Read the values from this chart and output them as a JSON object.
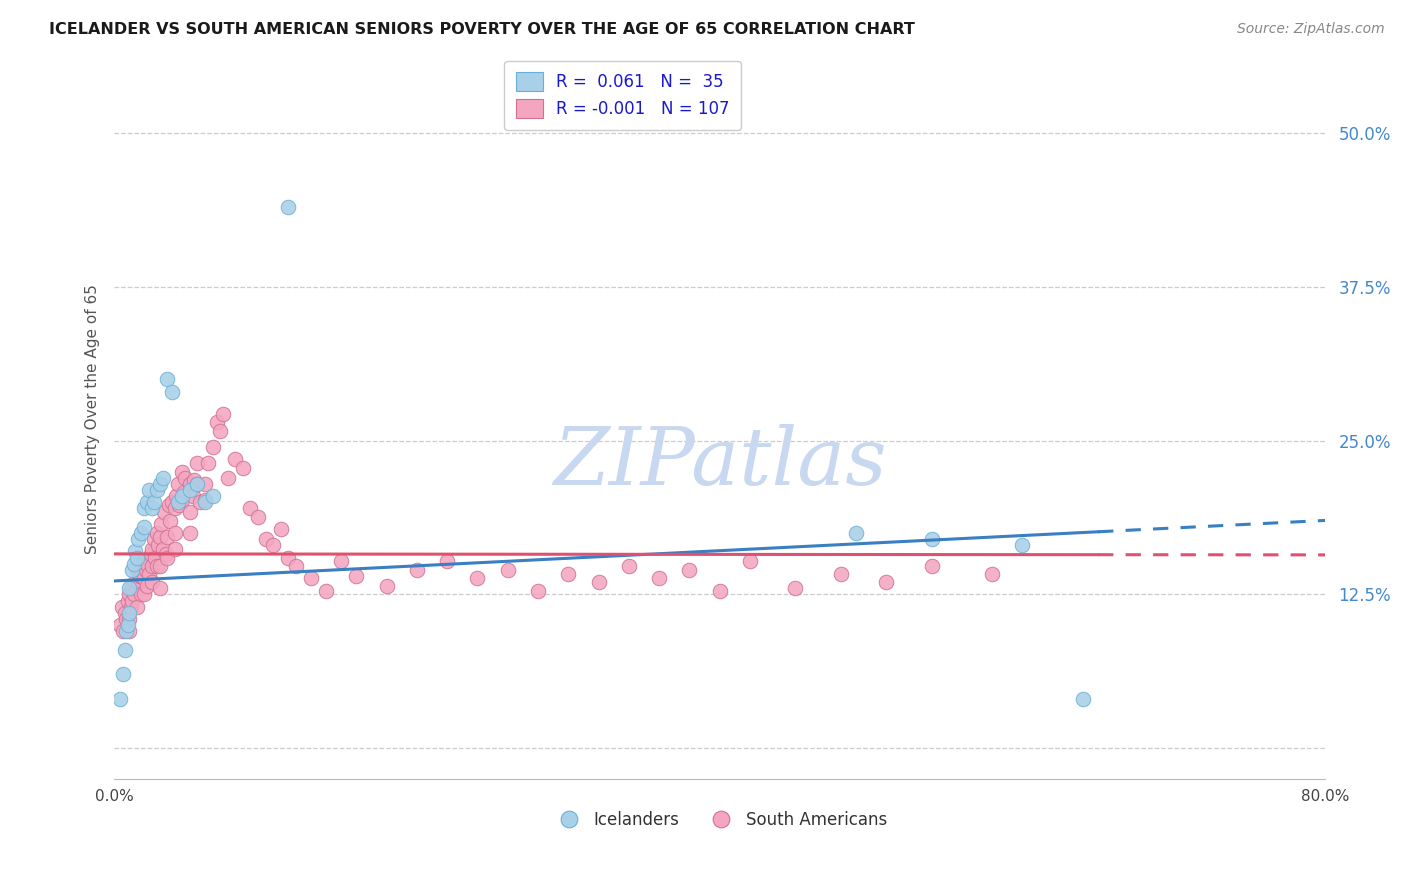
{
  "title": "ICELANDER VS SOUTH AMERICAN SENIORS POVERTY OVER THE AGE OF 65 CORRELATION CHART",
  "source": "Source: ZipAtlas.com",
  "ylabel": "Seniors Poverty Over the Age of 65",
  "ytick_values": [
    0.0,
    0.125,
    0.25,
    0.375,
    0.5
  ],
  "ytick_labels": [
    "",
    "12.5%",
    "25.0%",
    "37.5%",
    "50.0%"
  ],
  "xlim": [
    0.0,
    0.8
  ],
  "ylim": [
    -0.025,
    0.56
  ],
  "icelander_color": "#a8d0e8",
  "icelander_edge": "#6aafd6",
  "south_american_color": "#f4a6c0",
  "south_american_edge": "#d07090",
  "trend_blue_color": "#3a7fc1",
  "trend_pink_color": "#e05070",
  "legend_R_blue": "0.061",
  "legend_N_blue": "35",
  "legend_R_pink": "-0.001",
  "legend_N_pink": "107",
  "background_color": "#ffffff",
  "grid_color": "#cccccc",
  "title_color": "#1a1a1a",
  "source_color": "#888888",
  "ylabel_color": "#555555",
  "ytick_color": "#4488cc",
  "watermark_color": "#c8d8f0",
  "icelanders_x": [
    0.004,
    0.006,
    0.007,
    0.008,
    0.009,
    0.01,
    0.01,
    0.012,
    0.013,
    0.014,
    0.015,
    0.016,
    0.018,
    0.02,
    0.02,
    0.022,
    0.023,
    0.025,
    0.026,
    0.028,
    0.03,
    0.032,
    0.035,
    0.038,
    0.042,
    0.045,
    0.05,
    0.055,
    0.06,
    0.065,
    0.115,
    0.49,
    0.54,
    0.6,
    0.64
  ],
  "icelanders_y": [
    0.04,
    0.06,
    0.08,
    0.095,
    0.1,
    0.11,
    0.13,
    0.145,
    0.15,
    0.16,
    0.155,
    0.17,
    0.175,
    0.18,
    0.195,
    0.2,
    0.21,
    0.195,
    0.2,
    0.21,
    0.215,
    0.22,
    0.3,
    0.29,
    0.2,
    0.205,
    0.21,
    0.215,
    0.2,
    0.205,
    0.44,
    0.175,
    0.17,
    0.165,
    0.04
  ],
  "south_americans_x": [
    0.004,
    0.005,
    0.006,
    0.007,
    0.008,
    0.009,
    0.01,
    0.01,
    0.01,
    0.011,
    0.012,
    0.012,
    0.013,
    0.014,
    0.015,
    0.015,
    0.015,
    0.016,
    0.017,
    0.018,
    0.018,
    0.019,
    0.02,
    0.02,
    0.02,
    0.021,
    0.022,
    0.022,
    0.023,
    0.024,
    0.025,
    0.025,
    0.025,
    0.026,
    0.027,
    0.028,
    0.028,
    0.029,
    0.03,
    0.03,
    0.03,
    0.031,
    0.032,
    0.033,
    0.034,
    0.035,
    0.035,
    0.036,
    0.037,
    0.038,
    0.04,
    0.04,
    0.04,
    0.041,
    0.042,
    0.043,
    0.045,
    0.045,
    0.046,
    0.047,
    0.05,
    0.05,
    0.05,
    0.052,
    0.053,
    0.055,
    0.055,
    0.057,
    0.06,
    0.06,
    0.062,
    0.065,
    0.068,
    0.07,
    0.072,
    0.075,
    0.08,
    0.085,
    0.09,
    0.095,
    0.1,
    0.105,
    0.11,
    0.115,
    0.12,
    0.13,
    0.14,
    0.15,
    0.16,
    0.18,
    0.2,
    0.22,
    0.24,
    0.26,
    0.28,
    0.3,
    0.32,
    0.34,
    0.36,
    0.38,
    0.4,
    0.42,
    0.45,
    0.48,
    0.51,
    0.54,
    0.58
  ],
  "south_americans_y": [
    0.1,
    0.115,
    0.095,
    0.11,
    0.105,
    0.12,
    0.095,
    0.105,
    0.125,
    0.115,
    0.12,
    0.13,
    0.125,
    0.135,
    0.115,
    0.13,
    0.145,
    0.135,
    0.14,
    0.125,
    0.14,
    0.15,
    0.125,
    0.138,
    0.152,
    0.145,
    0.132,
    0.15,
    0.142,
    0.158,
    0.135,
    0.148,
    0.162,
    0.17,
    0.155,
    0.148,
    0.175,
    0.165,
    0.13,
    0.148,
    0.172,
    0.182,
    0.162,
    0.192,
    0.158,
    0.155,
    0.172,
    0.198,
    0.185,
    0.2,
    0.162,
    0.175,
    0.195,
    0.205,
    0.215,
    0.198,
    0.202,
    0.225,
    0.208,
    0.22,
    0.175,
    0.192,
    0.215,
    0.205,
    0.218,
    0.215,
    0.232,
    0.2,
    0.202,
    0.215,
    0.232,
    0.245,
    0.265,
    0.258,
    0.272,
    0.22,
    0.235,
    0.228,
    0.195,
    0.188,
    0.17,
    0.165,
    0.178,
    0.155,
    0.148,
    0.138,
    0.128,
    0.152,
    0.14,
    0.132,
    0.145,
    0.152,
    0.138,
    0.145,
    0.128,
    0.142,
    0.135,
    0.148,
    0.138,
    0.145,
    0.128,
    0.152,
    0.13,
    0.142,
    0.135,
    0.148,
    0.142
  ]
}
